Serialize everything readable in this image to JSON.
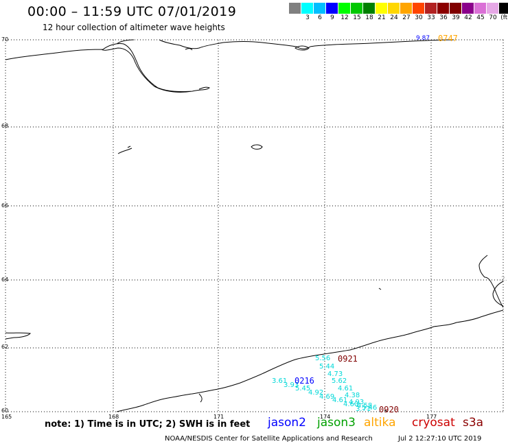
{
  "header": {
    "title": "00:00 – 11:59 UTC 07/01/2019",
    "subtitle": "12 hour collection of altimeter wave heights"
  },
  "colorbar": {
    "colors": [
      "#808080",
      "#00ffff",
      "#00bfff",
      "#0000ff",
      "#00ff00",
      "#00c800",
      "#008000",
      "#ffff00",
      "#ffd700",
      "#ffa500",
      "#ff4500",
      "#b22222",
      "#8b0000",
      "#800000",
      "#8b008b",
      "#da70d6",
      "#e6a8e6",
      "#000000"
    ],
    "labels": [
      "",
      "3",
      "6",
      "9",
      "12",
      "15",
      "18",
      "21",
      "24",
      "27",
      "30",
      "33",
      "36",
      "39",
      "42",
      "45",
      "70",
      "(ft)"
    ]
  },
  "axes": {
    "lat_labels": [
      "70",
      "68",
      "66",
      "64",
      "62",
      "60"
    ],
    "lon_labels": [
      "165",
      "168",
      "171",
      "174",
      "177"
    ]
  },
  "observations": {
    "top_value": "9.87",
    "top_time": "0747",
    "right_edge_value": "2.",
    "cyan_values": [
      "5.56",
      "5.44",
      "4.73",
      "5.62",
      "4.61",
      "4.38",
      "4.93",
      "4.60",
      "3.71",
      "3.61",
      "3.93",
      "5.45",
      "4.92",
      "4.69",
      "4.61",
      "4.58",
      "5.46"
    ],
    "time_0921": "0921",
    "time_0216": "0216",
    "time_0920": "0920"
  },
  "footer": {
    "note": "note: 1) Time is in UTC; 2) SWH is in feet",
    "satellites": [
      "jason2",
      "jason3",
      "altika",
      "cryosat",
      "s3a"
    ],
    "satellite_colors": [
      "#0000ff",
      "#00a000",
      "#ffa500",
      "#cc0000",
      "#8b0000"
    ],
    "credit": "NOAA/NESDIS Center for Satellite Applications and Research",
    "datestamp": "Jul  2 12:27:10 UTC 2019"
  }
}
